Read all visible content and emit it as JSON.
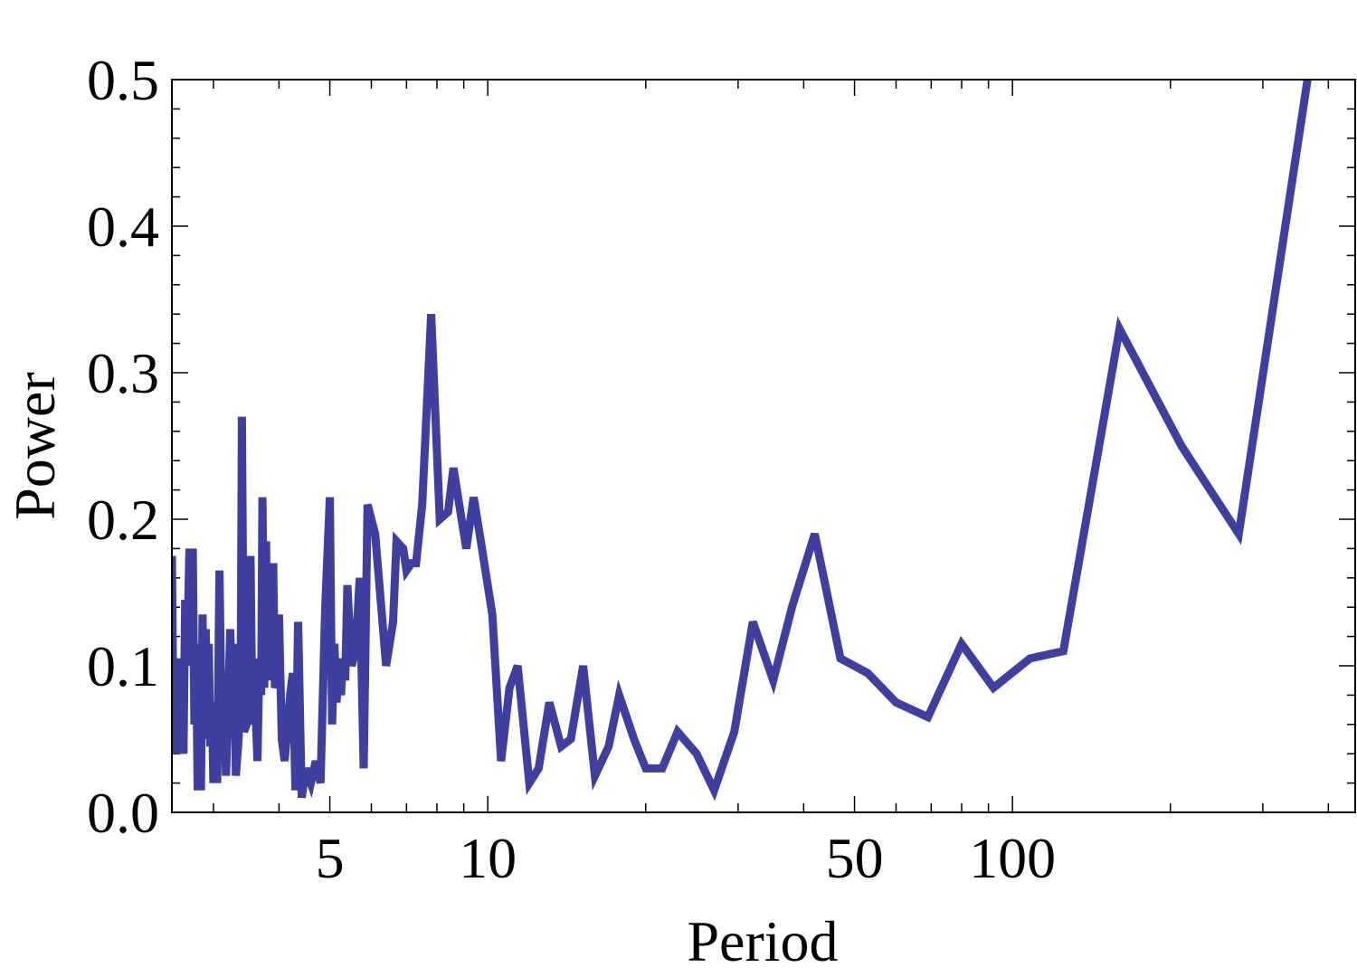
{
  "chart_data": {
    "type": "line",
    "xlabel": "Period",
    "ylabel": "Power",
    "xscale": "log",
    "xlim": [
      2.5,
      450
    ],
    "ylim": [
      0,
      0.5
    ],
    "grid": false,
    "legend": "none",
    "line_color": "#3f3f9f",
    "x_tick_labels": [
      {
        "value": 5,
        "label": "5"
      },
      {
        "value": 10,
        "label": "10"
      },
      {
        "value": 50,
        "label": "50"
      },
      {
        "value": 100,
        "label": "100"
      }
    ],
    "y_tick_labels": [
      {
        "value": 0.0,
        "label": "0.0"
      },
      {
        "value": 0.1,
        "label": "0.1"
      },
      {
        "value": 0.2,
        "label": "0.2"
      },
      {
        "value": 0.3,
        "label": "0.3"
      },
      {
        "value": 0.4,
        "label": "0.4"
      },
      {
        "value": 0.5,
        "label": "0.5"
      }
    ],
    "series": [
      {
        "points": [
          [
            2.5,
            0.175
          ],
          [
            2.52,
            0.04
          ],
          [
            2.55,
            0.07
          ],
          [
            2.57,
            0.04
          ],
          [
            2.6,
            0.105
          ],
          [
            2.63,
            0.04
          ],
          [
            2.65,
            0.145
          ],
          [
            2.67,
            0.1
          ],
          [
            2.7,
            0.18
          ],
          [
            2.72,
            0.11
          ],
          [
            2.74,
            0.18
          ],
          [
            2.76,
            0.06
          ],
          [
            2.78,
            0.115
          ],
          [
            2.8,
            0.015
          ],
          [
            2.82,
            0.07
          ],
          [
            2.84,
            0.015
          ],
          [
            2.86,
            0.135
          ],
          [
            2.88,
            0.055
          ],
          [
            2.9,
            0.125
          ],
          [
            2.92,
            0.05
          ],
          [
            2.94,
            0.115
          ],
          [
            2.96,
            0.045
          ],
          [
            2.98,
            0.075
          ],
          [
            3.0,
            0.02
          ],
          [
            3.02,
            0.07
          ],
          [
            3.05,
            0.02
          ],
          [
            3.08,
            0.165
          ],
          [
            3.11,
            0.06
          ],
          [
            3.14,
            0.08
          ],
          [
            3.17,
            0.025
          ],
          [
            3.2,
            0.07
          ],
          [
            3.23,
            0.125
          ],
          [
            3.26,
            0.07
          ],
          [
            3.29,
            0.115
          ],
          [
            3.31,
            0.025
          ],
          [
            3.35,
            0.05
          ],
          [
            3.38,
            0.08
          ],
          [
            3.4,
            0.27
          ],
          [
            3.43,
            0.055
          ],
          [
            3.47,
            0.06
          ],
          [
            3.5,
            0.085
          ],
          [
            3.53,
            0.175
          ],
          [
            3.56,
            0.06
          ],
          [
            3.6,
            0.08
          ],
          [
            3.64,
            0.035
          ],
          [
            3.67,
            0.105
          ],
          [
            3.7,
            0.08
          ],
          [
            3.72,
            0.215
          ],
          [
            3.75,
            0.085
          ],
          [
            3.78,
            0.185
          ],
          [
            3.81,
            0.09
          ],
          [
            3.84,
            0.155
          ],
          [
            3.87,
            0.095
          ],
          [
            3.9,
            0.17
          ],
          [
            3.93,
            0.085
          ],
          [
            3.97,
            0.09
          ],
          [
            4.0,
            0.135
          ],
          [
            4.05,
            0.05
          ],
          [
            4.1,
            0.035
          ],
          [
            4.2,
            0.08
          ],
          [
            4.25,
            0.095
          ],
          [
            4.3,
            0.015
          ],
          [
            4.35,
            0.13
          ],
          [
            4.42,
            0.01
          ],
          [
            4.5,
            0.03
          ],
          [
            4.6,
            0.02
          ],
          [
            4.7,
            0.035
          ],
          [
            4.8,
            0.02
          ],
          [
            4.9,
            0.14
          ],
          [
            5.0,
            0.215
          ],
          [
            5.05,
            0.06
          ],
          [
            5.1,
            0.115
          ],
          [
            5.15,
            0.075
          ],
          [
            5.2,
            0.1
          ],
          [
            5.25,
            0.08
          ],
          [
            5.3,
            0.105
          ],
          [
            5.35,
            0.09
          ],
          [
            5.4,
            0.155
          ],
          [
            5.5,
            0.1
          ],
          [
            5.6,
            0.11
          ],
          [
            5.7,
            0.16
          ],
          [
            5.8,
            0.03
          ],
          [
            5.9,
            0.21
          ],
          [
            6.1,
            0.19
          ],
          [
            6.4,
            0.1
          ],
          [
            6.6,
            0.13
          ],
          [
            6.7,
            0.185
          ],
          [
            6.9,
            0.18
          ],
          [
            7.0,
            0.165
          ],
          [
            7.15,
            0.17
          ],
          [
            7.3,
            0.17
          ],
          [
            7.5,
            0.21
          ],
          [
            7.8,
            0.34
          ],
          [
            8.1,
            0.2
          ],
          [
            8.4,
            0.205
          ],
          [
            8.6,
            0.235
          ],
          [
            9.1,
            0.18
          ],
          [
            9.4,
            0.215
          ],
          [
            9.7,
            0.185
          ],
          [
            10.2,
            0.135
          ],
          [
            10.6,
            0.035
          ],
          [
            11.0,
            0.085
          ],
          [
            11.4,
            0.1
          ],
          [
            12.0,
            0.02
          ],
          [
            12.5,
            0.03
          ],
          [
            13.1,
            0.075
          ],
          [
            13.8,
            0.045
          ],
          [
            14.4,
            0.05
          ],
          [
            15.2,
            0.1
          ],
          [
            16.0,
            0.025
          ],
          [
            17.0,
            0.045
          ],
          [
            17.8,
            0.08
          ],
          [
            19.0,
            0.05
          ],
          [
            20.0,
            0.03
          ],
          [
            21.5,
            0.03
          ],
          [
            23.0,
            0.055
          ],
          [
            25.0,
            0.04
          ],
          [
            27.0,
            0.015
          ],
          [
            29.5,
            0.055
          ],
          [
            32.0,
            0.13
          ],
          [
            35.0,
            0.09
          ],
          [
            38.0,
            0.14
          ],
          [
            42.0,
            0.19
          ],
          [
            47.0,
            0.105
          ],
          [
            53.0,
            0.095
          ],
          [
            60.0,
            0.075
          ],
          [
            69.0,
            0.065
          ],
          [
            80.0,
            0.115
          ],
          [
            92.0,
            0.085
          ],
          [
            108.0,
            0.105
          ],
          [
            125.0,
            0.11
          ],
          [
            160.0,
            0.33
          ],
          [
            210.0,
            0.25
          ],
          [
            270.0,
            0.19
          ],
          [
            365.0,
            0.5
          ]
        ]
      }
    ]
  }
}
